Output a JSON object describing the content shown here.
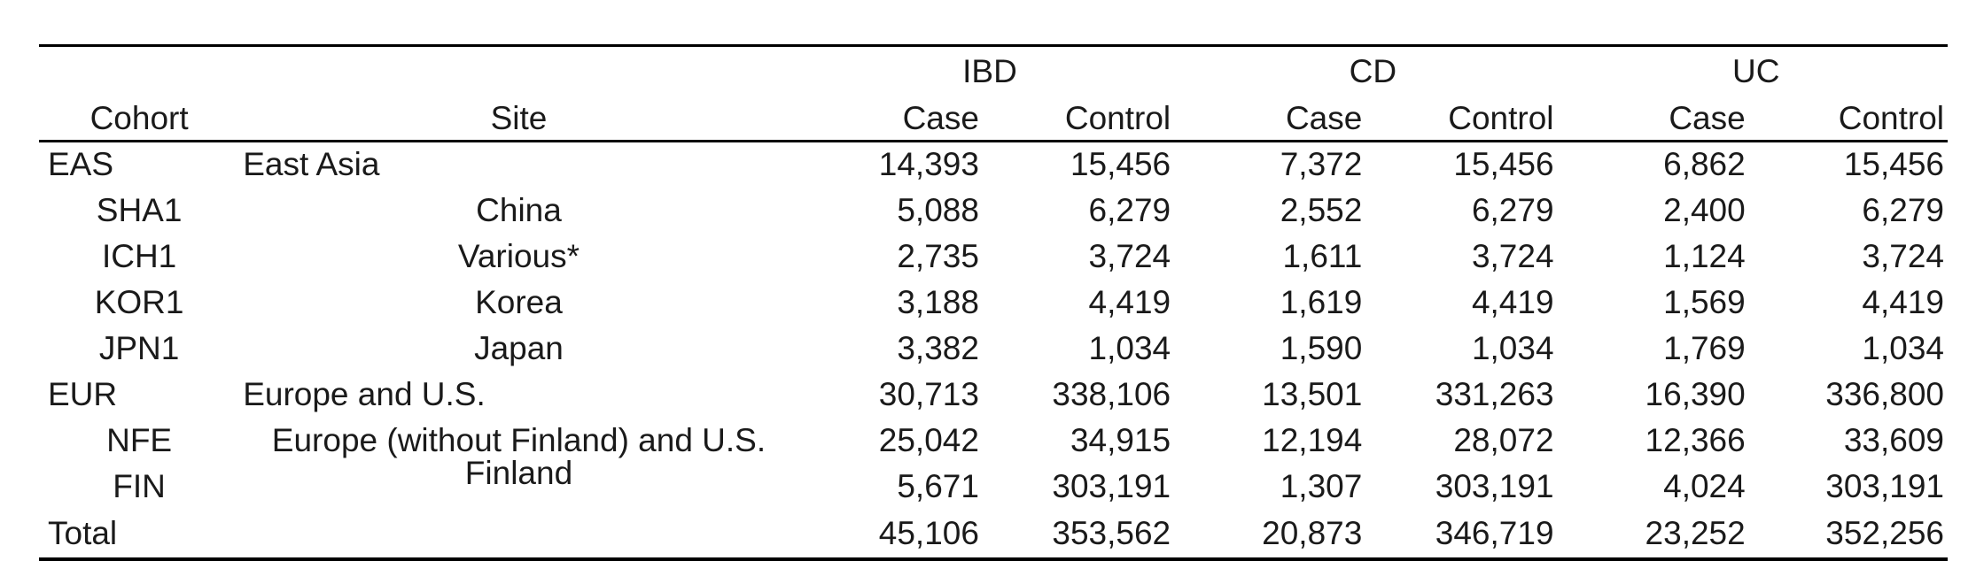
{
  "table": {
    "group_headers": [
      {
        "label": "IBD"
      },
      {
        "label": "CD"
      },
      {
        "label": "UC"
      }
    ],
    "columns": [
      "Cohort",
      "Site",
      "Case",
      "Control",
      "Case",
      "Control",
      "Case",
      "Control"
    ],
    "rows": [
      {
        "cohort": "EAS",
        "site": "East Asia",
        "values": [
          "14,393",
          "15,456",
          "7,372",
          "15,456",
          "6,862",
          "15,456"
        ]
      },
      {
        "cohort": "SHA1",
        "site": "China",
        "values": [
          "5,088",
          "6,279",
          "2,552",
          "6,279",
          "2,400",
          "6,279"
        ]
      },
      {
        "cohort": "ICH1",
        "site": "Various*",
        "values": [
          "2,735",
          "3,724",
          "1,611",
          "3,724",
          "1,124",
          "3,724"
        ]
      },
      {
        "cohort": "KOR1",
        "site": "Korea",
        "values": [
          "3,188",
          "4,419",
          "1,619",
          "4,419",
          "1,569",
          "4,419"
        ]
      },
      {
        "cohort": "JPN1",
        "site": "Japan",
        "values": [
          "3,382",
          "1,034",
          "1,590",
          "1,034",
          "1,769",
          "1,034"
        ]
      },
      {
        "cohort": "EUR",
        "site": "Europe and U.S.",
        "values": [
          "30,713",
          "338,106",
          "13,501",
          "331,263",
          "16,390",
          "336,800"
        ]
      },
      {
        "cohort": "NFE",
        "site": "Europe (without Finland) and U.S.",
        "values": [
          "25,042",
          "34,915",
          "12,194",
          "28,072",
          "12,366",
          "33,609"
        ]
      },
      {
        "cohort": "FIN",
        "site": "Finland",
        "values": [
          "5,671",
          "303,191",
          "1,307",
          "303,191",
          "4,024",
          "303,191"
        ]
      },
      {
        "cohort": "Total",
        "site": "",
        "values": [
          "45,106",
          "353,562",
          "20,873",
          "346,719",
          "23,252",
          "352,256"
        ]
      }
    ],
    "text_color": "#1a1a1a",
    "rule_color": "#000000"
  }
}
